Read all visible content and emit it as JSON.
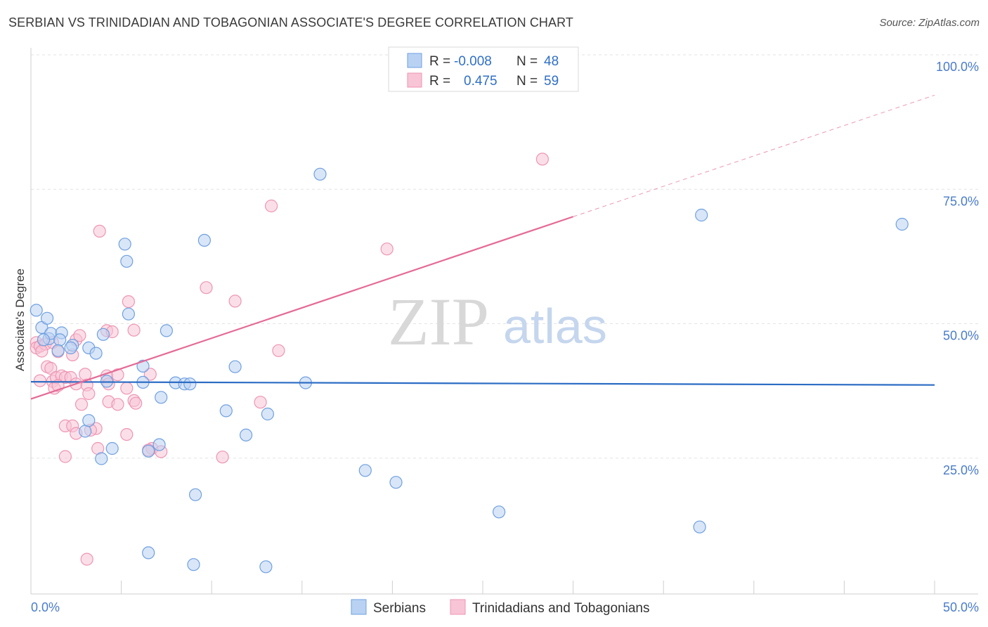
{
  "title": "SERBIAN VS TRINIDADIAN AND TOBAGONIAN ASSOCIATE'S DEGREE CORRELATION CHART",
  "source": "Source: ZipAtlas.com",
  "watermark": {
    "zip": "ZIP",
    "atlas": "atlas"
  },
  "chart_data": {
    "type": "scatter",
    "title": "SERBIAN VS TRINIDADIAN AND TOBAGONIAN ASSOCIATE'S DEGREE CORRELATION CHART",
    "xlabel": "",
    "ylabel": "Associate's Degree",
    "xlim": [
      0,
      50
    ],
    "ylim": [
      0,
      100
    ],
    "x_tick_labels": [
      {
        "value": 0,
        "label": "0.0%"
      },
      {
        "value": 50,
        "label": "50.0%"
      }
    ],
    "y_tick_labels": [
      {
        "value": 100,
        "label": "100.0%"
      },
      {
        "value": 75,
        "label": "75.0%"
      },
      {
        "value": 50,
        "label": "50.0%"
      },
      {
        "value": 25,
        "label": "25.0%"
      }
    ],
    "grid": true,
    "legend_position": "top-center",
    "series": [
      {
        "name": "Serbians",
        "color": "#6fa0e0",
        "fill": "#b9d2f3",
        "line_color": "#2b6cc4",
        "R": "-0.008",
        "N": "48",
        "trend": {
          "x0": 0,
          "y0": 39.2,
          "x1": 50,
          "y1": 38.6,
          "dashed_from": null
        },
        "points": [
          [
            0.3,
            52.5
          ],
          [
            0.6,
            49.3
          ],
          [
            0.9,
            51.0
          ],
          [
            1.0,
            47.2
          ],
          [
            1.1,
            48.2
          ],
          [
            0.7,
            47.0
          ],
          [
            1.7,
            48.3
          ],
          [
            1.6,
            47.0
          ],
          [
            1.5,
            45.0
          ],
          [
            2.3,
            46.0
          ],
          [
            2.2,
            45.5
          ],
          [
            3.2,
            45.5
          ],
          [
            3.6,
            44.5
          ],
          [
            4.0,
            48.0
          ],
          [
            5.3,
            61.6
          ],
          [
            5.4,
            51.8
          ],
          [
            5.2,
            64.8
          ],
          [
            6.2,
            42.1
          ],
          [
            6.2,
            39.1
          ],
          [
            7.2,
            36.3
          ],
          [
            7.5,
            48.7
          ],
          [
            8.0,
            39.0
          ],
          [
            8.5,
            38.8
          ],
          [
            8.8,
            38.8
          ],
          [
            9.6,
            65.5
          ],
          [
            10.8,
            33.8
          ],
          [
            11.3,
            42.0
          ],
          [
            11.9,
            29.3
          ],
          [
            13.1,
            33.2
          ],
          [
            15.2,
            39.0
          ],
          [
            16.0,
            77.8
          ],
          [
            18.5,
            22.7
          ],
          [
            20.2,
            20.5
          ],
          [
            25.9,
            15.0
          ],
          [
            37.0,
            12.2
          ],
          [
            37.1,
            70.2
          ],
          [
            48.2,
            68.5
          ],
          [
            3.0,
            30.0
          ],
          [
            3.2,
            32.0
          ],
          [
            4.2,
            39.3
          ],
          [
            4.5,
            26.8
          ],
          [
            3.9,
            24.9
          ],
          [
            7.1,
            27.5
          ],
          [
            6.5,
            26.3
          ],
          [
            9.1,
            18.2
          ],
          [
            6.5,
            7.4
          ],
          [
            9.0,
            5.2
          ],
          [
            13.0,
            4.8
          ]
        ]
      },
      {
        "name": "Trinidadians and Tobagonians",
        "color": "#ee95b3",
        "fill": "#f8c5d6",
        "line_color": "#e56a96",
        "R": "0.475",
        "N": "59",
        "trend": {
          "x0": 0,
          "y0": 36.0,
          "x1": 50,
          "y1": 92.5,
          "dashed_from": 30
        },
        "points": [
          [
            0.3,
            46.5
          ],
          [
            0.3,
            45.5
          ],
          [
            0.5,
            45.8
          ],
          [
            0.8,
            46.2
          ],
          [
            1.2,
            46.5
          ],
          [
            1.5,
            44.8
          ],
          [
            0.6,
            44.9
          ],
          [
            0.9,
            42.0
          ],
          [
            1.1,
            41.7
          ],
          [
            1.2,
            39.3
          ],
          [
            1.3,
            38.0
          ],
          [
            1.4,
            40.0
          ],
          [
            1.7,
            40.3
          ],
          [
            1.9,
            40.0
          ],
          [
            2.2,
            40.0
          ],
          [
            2.5,
            38.8
          ],
          [
            1.5,
            38.5
          ],
          [
            0.5,
            39.4
          ],
          [
            2.3,
            44.2
          ],
          [
            2.5,
            47.0
          ],
          [
            2.7,
            47.8
          ],
          [
            3.0,
            40.6
          ],
          [
            3.1,
            38.6
          ],
          [
            2.8,
            35.0
          ],
          [
            3.2,
            37.0
          ],
          [
            4.2,
            40.3
          ],
          [
            4.3,
            38.8
          ],
          [
            4.8,
            40.5
          ],
          [
            5.3,
            38.0
          ],
          [
            5.7,
            35.7
          ],
          [
            5.8,
            35.2
          ],
          [
            5.4,
            54.1
          ],
          [
            5.7,
            48.8
          ],
          [
            4.2,
            48.7
          ],
          [
            4.5,
            48.5
          ],
          [
            4.3,
            35.5
          ],
          [
            4.8,
            35.0
          ],
          [
            3.8,
            67.2
          ],
          [
            6.6,
            40.6
          ],
          [
            6.7,
            26.8
          ],
          [
            6.5,
            26.5
          ],
          [
            7.2,
            26.2
          ],
          [
            1.9,
            31.0
          ],
          [
            2.3,
            31.0
          ],
          [
            3.6,
            30.5
          ],
          [
            3.3,
            30.2
          ],
          [
            2.5,
            29.6
          ],
          [
            5.3,
            29.4
          ],
          [
            1.9,
            25.3
          ],
          [
            3.7,
            26.8
          ],
          [
            9.7,
            56.7
          ],
          [
            11.3,
            54.2
          ],
          [
            12.7,
            35.4
          ],
          [
            13.3,
            71.9
          ],
          [
            13.7,
            45.0
          ],
          [
            19.7,
            63.9
          ],
          [
            28.3,
            80.6
          ],
          [
            10.6,
            25.2
          ],
          [
            3.1,
            6.2
          ]
        ]
      }
    ]
  },
  "legend": {
    "rows": [
      {
        "r_label": "R =",
        "r_value": "-0.008",
        "n_label": "N =",
        "n_value": "48"
      },
      {
        "r_label": "R =",
        "r_value": "0.475",
        "n_label": "N =",
        "n_value": "59"
      }
    ]
  },
  "bottom_legend": [
    "Serbians",
    "Trinidadians and Tobagonians"
  ]
}
